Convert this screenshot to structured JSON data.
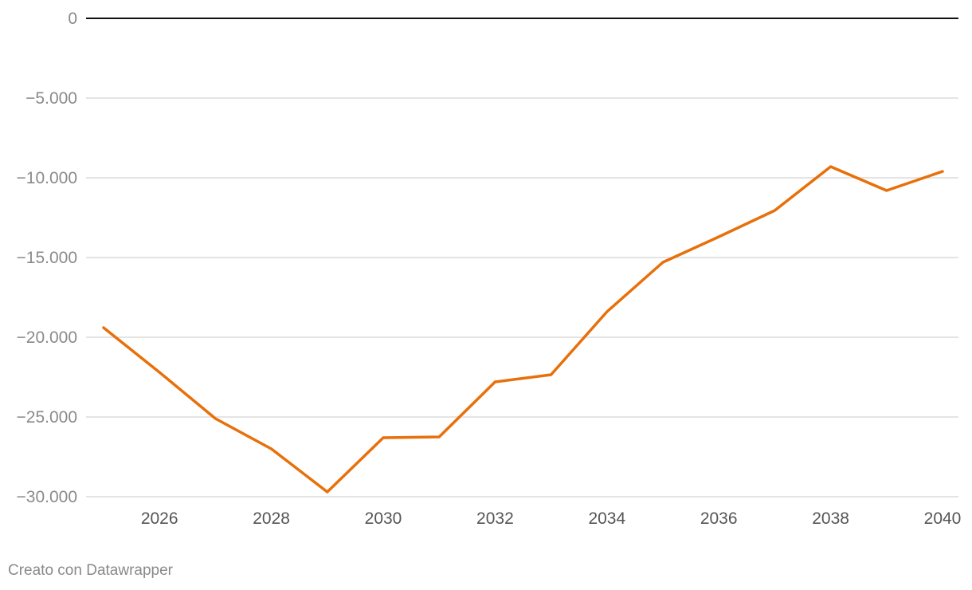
{
  "chart_data": {
    "type": "line",
    "title": "",
    "xlabel": "",
    "ylabel": "",
    "xlim": [
      2025,
      2040
    ],
    "ylim": [
      -30000,
      0
    ],
    "y_ticks": [
      0,
      -5000,
      -10000,
      -15000,
      -20000,
      -25000,
      -30000
    ],
    "y_tick_labels": [
      "0",
      "−5.000",
      "−10.000",
      "−15.000",
      "−20.000",
      "−25.000",
      "−30.000"
    ],
    "x_ticks": [
      2026,
      2028,
      2030,
      2032,
      2034,
      2036,
      2038,
      2040
    ],
    "x_tick_labels": [
      "2026",
      "2028",
      "2030",
      "2032",
      "2034",
      "2036",
      "2038",
      "2040"
    ],
    "grid": true,
    "series": [
      {
        "color": "#e8700a",
        "x": [
          2025,
          2026,
          2027,
          2028,
          2029,
          2030,
          2031,
          2032,
          2033,
          2034,
          2035,
          2036,
          2037,
          2038,
          2039,
          2040
        ],
        "values": [
          -19400,
          -22200,
          -25100,
          -27000,
          -29700,
          -26300,
          -26250,
          -22800,
          -22350,
          -18400,
          -15300,
          -13700,
          -12050,
          -9300,
          -10800,
          -9600
        ]
      }
    ]
  },
  "footer": {
    "credit": "Creato con Datawrapper"
  }
}
